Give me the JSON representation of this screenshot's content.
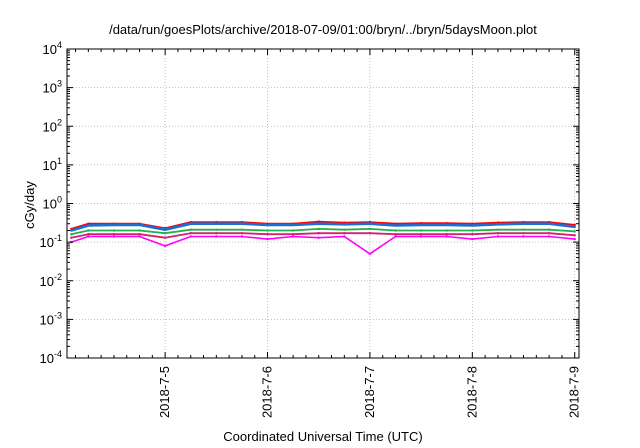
{
  "chart_data": {
    "type": "line",
    "title": "/data/run/goesPlots/archive/2018-07-09/01:00/bryn/../bryn/5daysMoon.plot",
    "xlabel": "Coordinated Universal Time (UTC)",
    "ylabel": "cGy/day",
    "yscale": "log",
    "ylim": [
      0.0001,
      10000
    ],
    "xlim": [
      "2018-07-04T01:00",
      "2018-07-09T01:00"
    ],
    "grid": true,
    "x_tick_labels": [
      "2018-7-5",
      "2018-7-6",
      "2018-7-7",
      "2018-7-8",
      "2018-7-9"
    ],
    "y_tick_labels": [
      {
        "base": "10",
        "exp": "-4"
      },
      {
        "base": "10",
        "exp": "-3"
      },
      {
        "base": "10",
        "exp": "-2"
      },
      {
        "base": "10",
        "exp": "-1"
      },
      {
        "base": "10",
        "exp": "0"
      },
      {
        "base": "10",
        "exp": "1"
      },
      {
        "base": "10",
        "exp": "2"
      },
      {
        "base": "10",
        "exp": "3"
      },
      {
        "base": "10",
        "exp": "4"
      }
    ],
    "x_day_anchors": [
      "2018-07-04T00:00",
      "2018-07-05T00:00",
      "2018-07-06T00:00",
      "2018-07-07T00:00",
      "2018-07-08T00:00",
      "2018-07-09T00:00",
      "2018-07-10T00:00"
    ],
    "x": [
      "2018-07-04T02:00",
      "2018-07-04T06:00",
      "2018-07-04T12:00",
      "2018-07-04T18:00",
      "2018-07-05T00:00",
      "2018-07-05T06:00",
      "2018-07-05T12:00",
      "2018-07-05T18:00",
      "2018-07-06T00:00",
      "2018-07-06T06:00",
      "2018-07-06T12:00",
      "2018-07-06T18:00",
      "2018-07-07T00:00",
      "2018-07-07T06:00",
      "2018-07-07T12:00",
      "2018-07-07T18:00",
      "2018-07-08T00:00",
      "2018-07-08T06:00",
      "2018-07-08T12:00",
      "2018-07-08T18:00",
      "2018-07-09T00:00"
    ],
    "series": [
      {
        "color": "#ff0000",
        "values": [
          0.22,
          0.3,
          0.3,
          0.3,
          0.23,
          0.33,
          0.33,
          0.33,
          0.3,
          0.3,
          0.34,
          0.32,
          0.33,
          0.3,
          0.31,
          0.31,
          0.3,
          0.32,
          0.33,
          0.33,
          0.28
        ]
      },
      {
        "color": "#1a6fd4",
        "values": [
          0.2,
          0.27,
          0.28,
          0.28,
          0.21,
          0.3,
          0.3,
          0.3,
          0.28,
          0.28,
          0.3,
          0.29,
          0.3,
          0.27,
          0.28,
          0.28,
          0.27,
          0.29,
          0.3,
          0.3,
          0.25
        ]
      },
      {
        "color": "#22b24c",
        "values": [
          0.16,
          0.2,
          0.2,
          0.2,
          0.17,
          0.21,
          0.21,
          0.21,
          0.2,
          0.2,
          0.22,
          0.21,
          0.22,
          0.2,
          0.2,
          0.2,
          0.2,
          0.21,
          0.21,
          0.21,
          0.19
        ]
      },
      {
        "color": "#d4206e",
        "values": [
          0.13,
          0.16,
          0.16,
          0.16,
          0.13,
          0.17,
          0.17,
          0.17,
          0.16,
          0.16,
          0.17,
          0.17,
          0.17,
          0.16,
          0.16,
          0.16,
          0.16,
          0.17,
          0.17,
          0.17,
          0.15
        ]
      },
      {
        "color": "#ff00ff",
        "values": [
          0.1,
          0.14,
          0.14,
          0.14,
          0.08,
          0.14,
          0.14,
          0.14,
          0.12,
          0.14,
          0.13,
          0.14,
          0.05,
          0.14,
          0.14,
          0.14,
          0.12,
          0.14,
          0.14,
          0.14,
          0.12
        ]
      }
    ]
  }
}
